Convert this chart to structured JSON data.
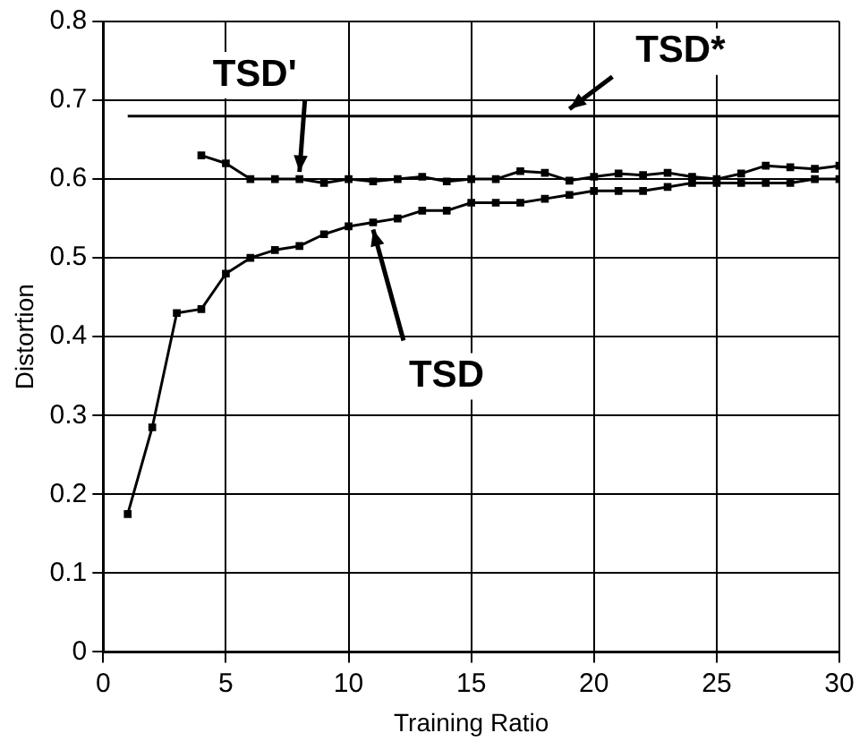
{
  "chart_data": {
    "type": "line",
    "xlabel": "Training Ratio",
    "ylabel": "Distortion",
    "xlim": [
      0,
      30
    ],
    "xticks": [
      0,
      5,
      10,
      15,
      20,
      25,
      30
    ],
    "ylim": [
      0,
      0.8
    ],
    "yticks": [
      0,
      0.1,
      0.2,
      0.3,
      0.4,
      0.5,
      0.6,
      0.7,
      0.8
    ],
    "grid": true,
    "legend": false,
    "marker": "square",
    "line_style": "solid",
    "series": [
      {
        "color": "#000000",
        "x": [
          1,
          2,
          3,
          4,
          5,
          6,
          7,
          8,
          9,
          10,
          11,
          12,
          13,
          14,
          15,
          16,
          17,
          18,
          19,
          20,
          21,
          22,
          23,
          24,
          25,
          26,
          27,
          28,
          29,
          30
        ],
        "values": [
          0.175,
          0.285,
          0.43,
          0.435,
          0.48,
          0.5,
          0.51,
          0.515,
          0.53,
          0.54,
          0.545,
          0.55,
          0.56,
          0.56,
          0.57,
          0.57,
          0.57,
          0.575,
          0.58,
          0.585,
          0.585,
          0.585,
          0.59,
          0.595,
          0.595,
          0.595,
          0.595,
          0.595,
          0.6,
          0.6
        ]
      },
      {
        "color": "#000000",
        "x": [
          4,
          5,
          6,
          7,
          8,
          9,
          10,
          11,
          12,
          13,
          14,
          15,
          16,
          17,
          18,
          19,
          20,
          21,
          22,
          23,
          24,
          25,
          26,
          27,
          28,
          29,
          30
        ],
        "values": [
          0.63,
          0.62,
          0.6,
          0.6,
          0.6,
          0.595,
          0.6,
          0.597,
          0.6,
          0.603,
          0.597,
          0.6,
          0.6,
          0.61,
          0.608,
          0.598,
          0.603,
          0.607,
          0.605,
          0.608,
          0.603,
          0.6,
          0.607,
          0.617,
          0.615,
          0.613,
          0.617
        ]
      },
      {
        "color": "#000000",
        "marker": "none",
        "x": [
          1,
          30
        ],
        "values": [
          0.68,
          0.68
        ]
      }
    ],
    "annotations": [
      {
        "text": "TSD'",
        "x": 8,
        "y": 0.6
      },
      {
        "text": "TSD*",
        "x": 19,
        "y": 0.68
      },
      {
        "text": "TSD",
        "x": 11,
        "y": 0.545
      }
    ]
  }
}
